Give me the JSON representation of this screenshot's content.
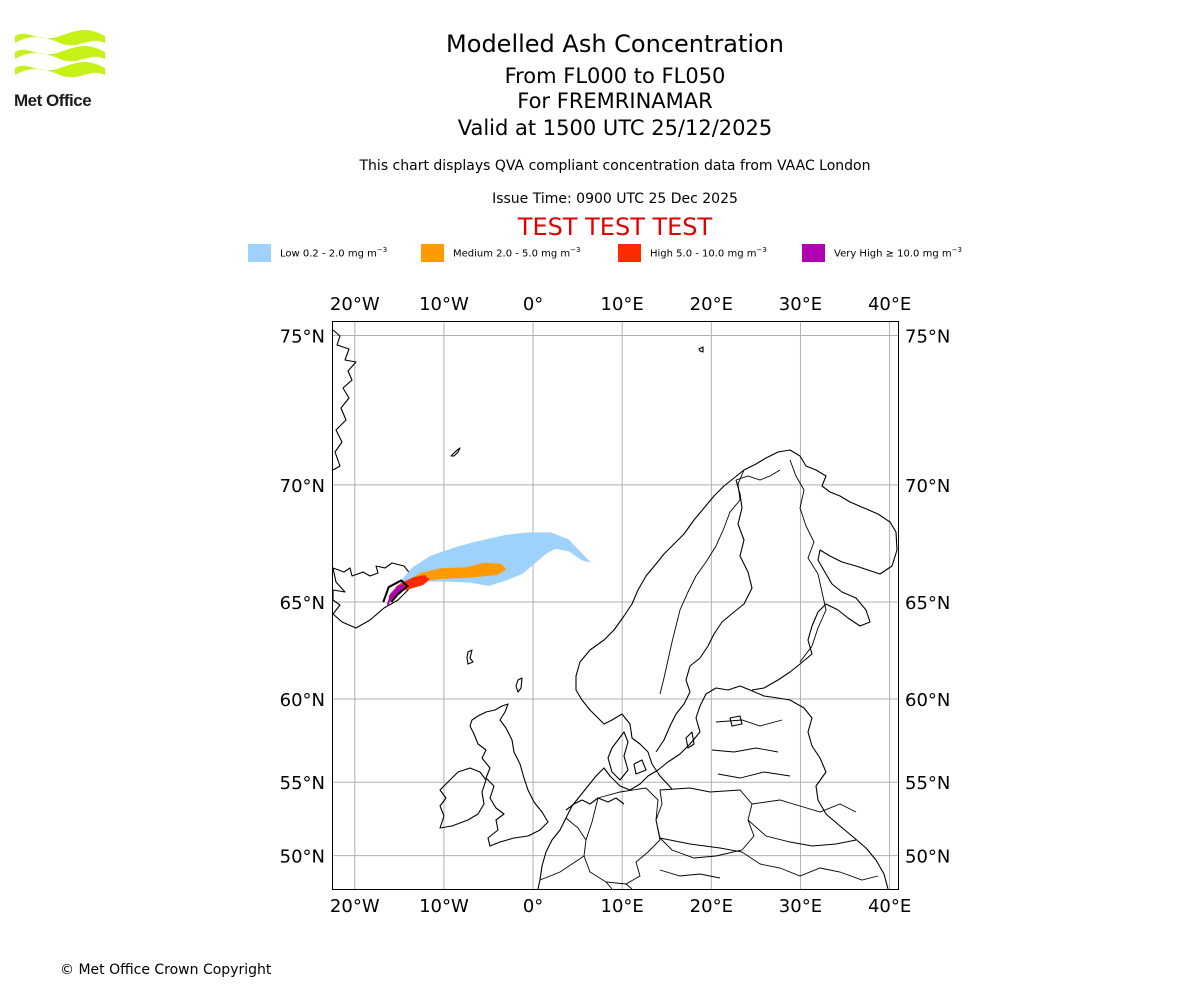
{
  "logo": {
    "text": "Met Office"
  },
  "header": {
    "title": "Modelled Ash Concentration",
    "levels": "From FL000 to FL050",
    "volcano": "For FREMRINAMAR",
    "valid": "Valid at 1500 UTC 25/12/2025",
    "note": "This chart displays QVA compliant concentration data from VAAC London",
    "issue": "Issue Time: 0900 UTC 25 Dec 2025",
    "test": "TEST TEST TEST"
  },
  "legend": [
    {
      "label": "Low 0.2 - 2.0 mg m",
      "sup": "−3",
      "color": "#9ed1fc"
    },
    {
      "label": "Medium 2.0 - 5.0 mg m",
      "sup": "−3",
      "color": "#ff9a00"
    },
    {
      "label": "High 5.0 - 10.0 mg m",
      "sup": "−3",
      "color": "#ff2a00"
    },
    {
      "label": "Very High  ≥  10.0 mg m",
      "sup": "−3",
      "color": "#b000b0"
    }
  ],
  "map": {
    "lon_range": [
      -22.5,
      41.0
    ],
    "lat_range": [
      47.5,
      75.4
    ],
    "lon_ticks": [
      {
        "value": -20,
        "label": "20°W"
      },
      {
        "value": -10,
        "label": "10°W"
      },
      {
        "value": 0,
        "label": "0°"
      },
      {
        "value": 10,
        "label": "10°E"
      },
      {
        "value": 20,
        "label": "20°E"
      },
      {
        "value": 30,
        "label": "30°E"
      },
      {
        "value": 40,
        "label": "40°E"
      }
    ],
    "lat_ticks": [
      {
        "value": 75,
        "label": "75°N"
      },
      {
        "value": 70,
        "label": "70°N"
      },
      {
        "value": 65,
        "label": "65°N"
      },
      {
        "value": 60,
        "label": "60°N"
      },
      {
        "value": 55,
        "label": "55°N"
      },
      {
        "value": 50,
        "label": "50°N"
      }
    ],
    "ash_plume": [
      {
        "level": "Low",
        "color": "#9ed1fc",
        "polygon": [
          [
            -15.5,
            65.3
          ],
          [
            -14.8,
            66.0
          ],
          [
            -13.5,
            66.6
          ],
          [
            -11.5,
            67.1
          ],
          [
            -8.5,
            67.5
          ],
          [
            -6.5,
            67.7
          ],
          [
            -3,
            68.0
          ],
          [
            -0.5,
            68.1
          ],
          [
            2,
            68.1
          ],
          [
            4,
            67.8
          ],
          [
            5.5,
            67.2
          ],
          [
            6.5,
            66.8
          ],
          [
            5.5,
            66.9
          ],
          [
            4,
            67.3
          ],
          [
            2.5,
            67.4
          ],
          [
            1.5,
            67.2
          ],
          [
            0,
            66.7
          ],
          [
            -1.2,
            66.3
          ],
          [
            -3,
            66.0
          ],
          [
            -5,
            65.75
          ],
          [
            -7,
            65.9
          ],
          [
            -9.5,
            65.95
          ],
          [
            -12,
            65.95
          ],
          [
            -14,
            65.75
          ],
          [
            -15.3,
            65.3
          ]
        ]
      },
      {
        "level": "Medium",
        "color": "#ff9a00",
        "polygon": [
          [
            -15.2,
            65.6
          ],
          [
            -14.0,
            66.0
          ],
          [
            -12.6,
            66.35
          ],
          [
            -10.3,
            66.55
          ],
          [
            -7.5,
            66.6
          ],
          [
            -5.5,
            66.8
          ],
          [
            -3.6,
            66.75
          ],
          [
            -3.0,
            66.5
          ],
          [
            -4.0,
            66.25
          ],
          [
            -6.5,
            66.15
          ],
          [
            -8.5,
            66.1
          ],
          [
            -10.8,
            66.05
          ],
          [
            -12.8,
            65.95
          ],
          [
            -14.5,
            65.75
          ],
          [
            -15.2,
            65.6
          ]
        ]
      },
      {
        "level": "High",
        "color": "#ff2a00",
        "polygon": [
          [
            -15.9,
            65.4
          ],
          [
            -15.3,
            65.75
          ],
          [
            -14.5,
            65.95
          ],
          [
            -13.4,
            66.15
          ],
          [
            -12.2,
            66.25
          ],
          [
            -11.6,
            66.05
          ],
          [
            -12.3,
            65.8
          ],
          [
            -13.5,
            65.65
          ],
          [
            -14.8,
            65.5
          ],
          [
            -15.6,
            65.2
          ],
          [
            -16.1,
            65.0
          ],
          [
            -16.2,
            65.3
          ]
        ]
      },
      {
        "level": "Very High",
        "color": "#b000b0",
        "polygon": [
          [
            -16.4,
            64.9
          ],
          [
            -16.0,
            65.4
          ],
          [
            -15.2,
            65.75
          ],
          [
            -14.4,
            65.85
          ],
          [
            -14.6,
            65.55
          ],
          [
            -15.5,
            65.3
          ],
          [
            -16.0,
            65.05
          ],
          [
            -16.3,
            64.8
          ]
        ]
      }
    ],
    "source_outline": [
      [
        -16.8,
        65.0
      ],
      [
        -16.2,
        65.7
      ],
      [
        -14.8,
        66.0
      ],
      [
        -14.1,
        65.75
      ],
      [
        -15.2,
        65.35
      ],
      [
        -15.9,
        65.0
      ]
    ]
  },
  "footer": {
    "copyright": "© Met Office Crown Copyright"
  }
}
